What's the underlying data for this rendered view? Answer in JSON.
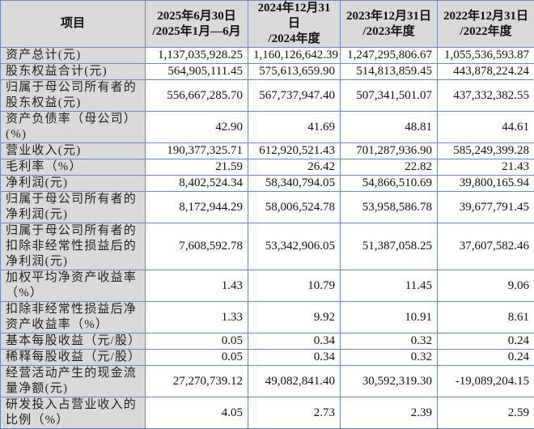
{
  "table": {
    "headers": [
      {
        "label": "项目"
      },
      {
        "line1": "2025年6月30日",
        "line2": "/2025年1月—6月"
      },
      {
        "line1": "2024年12月31日",
        "line2": "/2024年度"
      },
      {
        "line1": "2023年12月31日",
        "line2": "/2023年度"
      },
      {
        "line1": "2022年12月31日",
        "line2": "/2022年度"
      }
    ],
    "rows": [
      {
        "label": "资产总计(元)",
        "values": [
          "1,137,035,928.25",
          "1,160,126,642.39",
          "1,247,295,806.67",
          "1,055,536,593.87"
        ]
      },
      {
        "label": "股东权益合计(元)",
        "values": [
          "564,905,111.45",
          "575,613,659.90",
          "514,813,859.45",
          "443,878,224.24"
        ]
      },
      {
        "label": "归属于母公司所有者的股东权益(元)",
        "values": [
          "556,667,285.70",
          "567,737,947.40",
          "507,341,501.07",
          "437,332,382.55"
        ]
      },
      {
        "label": "资产负债率（母公司）(%)",
        "values": [
          "42.90",
          "41.69",
          "48.81",
          "44.61"
        ]
      },
      {
        "label": "营业收入(元)",
        "values": [
          "190,377,325.71",
          "612,920,521.43",
          "701,287,936.90",
          "585,249,399.28"
        ]
      },
      {
        "label": "毛利率（%）",
        "values": [
          "21.59",
          "26.42",
          "22.82",
          "21.43"
        ]
      },
      {
        "label": "净利润(元)",
        "values": [
          "8,402,524.34",
          "58,340,794.05",
          "54,866,510.69",
          "39,800,165.94"
        ]
      },
      {
        "label": "归属于母公司所有者的净利润(元)",
        "values": [
          "8,172,944.29",
          "58,006,524.78",
          "53,958,586.78",
          "39,677,791.45"
        ]
      },
      {
        "label": "归属于母公司所有者的扣除非经常性损益后的净利润(元)",
        "values": [
          "7,608,592.78",
          "53,342,906.05",
          "51,387,058.25",
          "37,607,582.46"
        ]
      },
      {
        "label": "加权平均净资产收益率（%）",
        "values": [
          "1.43",
          "10.79",
          "11.45",
          "9.06"
        ]
      },
      {
        "label": "扣除非经常性损益后净资产收益率（%）",
        "values": [
          "1.33",
          "9.92",
          "10.91",
          "8.61"
        ]
      },
      {
        "label": "基本每股收益（元/股）",
        "values": [
          "0.05",
          "0.34",
          "0.32",
          "0.24"
        ]
      },
      {
        "label": "稀释每股收益（元/股）",
        "values": [
          "0.05",
          "0.34",
          "0.32",
          "0.24"
        ]
      },
      {
        "label": "经营活动产生的现金流量净额(元)",
        "values": [
          "27,270,739.12",
          "49,082,841.40",
          "30,592,319.30",
          "-19,089,204.15"
        ]
      },
      {
        "label": "研发投入占营业收入的比例（%）",
        "values": [
          "4.05",
          "2.73",
          "2.39",
          "2.59"
        ]
      }
    ]
  },
  "colors": {
    "header_bg": "#d9d9d9",
    "label_bg": "#d9d9d9",
    "border": "#6b8ab5"
  }
}
